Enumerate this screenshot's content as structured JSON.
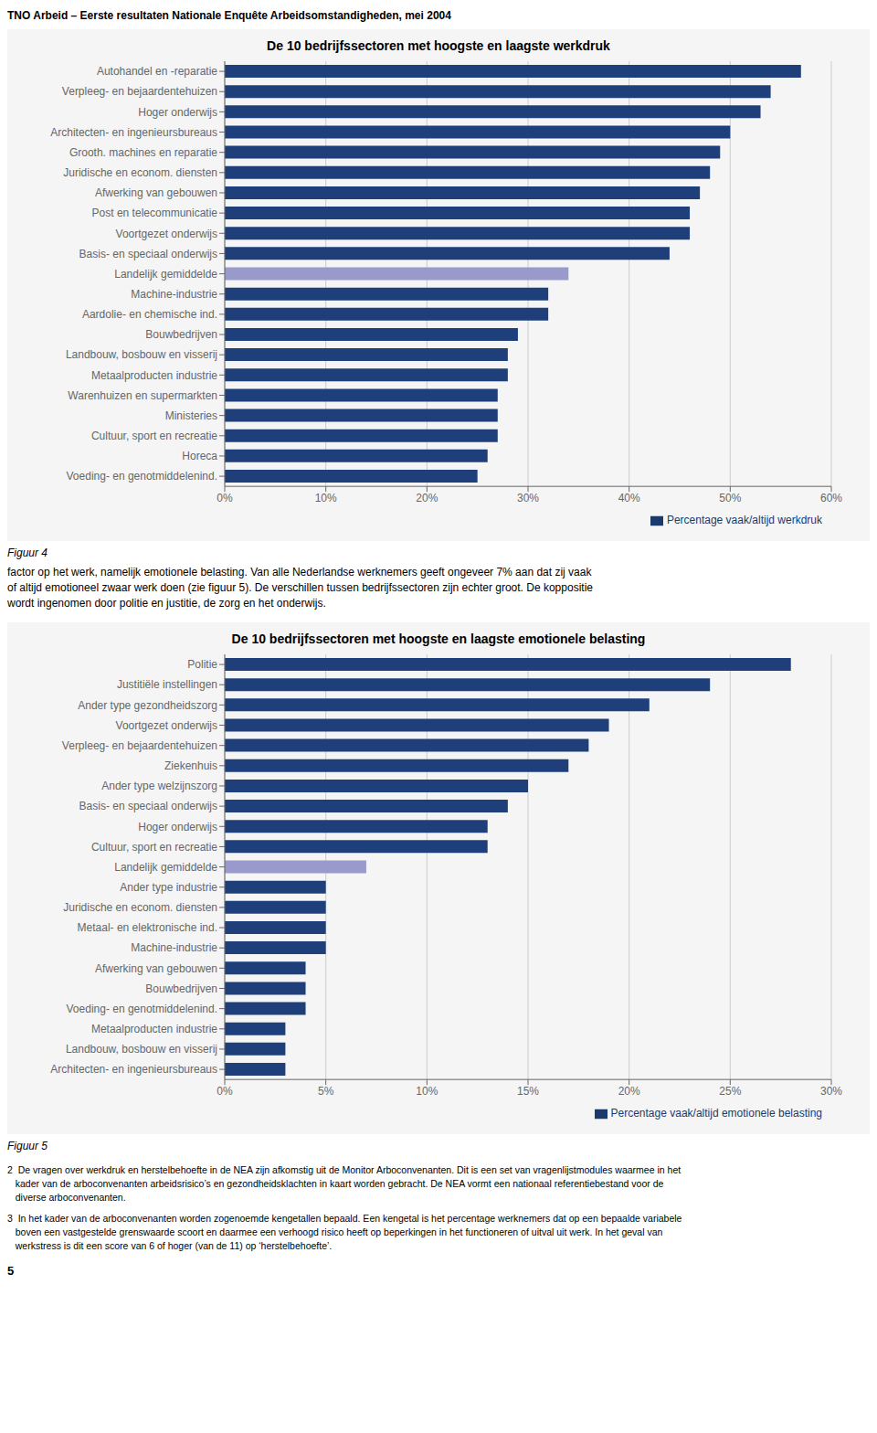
{
  "title": "TNO Arbeid – Eerste resultaten Nationale Enquête Arbeidsomstandigheden, mei 2004",
  "chart_data": [
    {
      "type": "bar",
      "title": "De 10 bedrijfssectoren met hoogste en laagste werkdruk",
      "orientation": "horizontal",
      "categories": [
        "Autohandel en -reparatie",
        "Verpleeg- en bejaardentehuizen",
        "Hoger onderwijs",
        "Architecten- en ingenieursbureaus",
        "Grooth. machines en reparatie",
        "Juridische en econom. diensten",
        "Afwerking van gebouwen",
        "Post en telecommunicatie",
        "Voortgezet onderwijs",
        "Basis- en speciaal onderwijs",
        "Landelijk gemiddelde",
        "Machine-industrie",
        "Aardolie- en chemische ind.",
        "Bouwbedrijven",
        "Landbouw, bosbouw en visserij",
        "Metaalproducten industrie",
        "Warenhuizen en supermarkten",
        "Ministeries",
        "Cultuur, sport en recreatie",
        "Horeca",
        "Voeding- en genotmiddelenind."
      ],
      "series": [
        {
          "name": "Percentage vaak/altijd werkdruk",
          "color": "#1a3a6e",
          "colors": [
            "#1f3f7a",
            "#1f3f7a",
            "#1f3f7a",
            "#1f3f7a",
            "#1f3f7a",
            "#1f3f7a",
            "#1f3f7a",
            "#1f3f7a",
            "#1f3f7a",
            "#1f3f7a",
            "#9999cc",
            "#1f3f7a",
            "#1f3f7a",
            "#1f3f7a",
            "#1f3f7a",
            "#1f3f7a",
            "#1f3f7a",
            "#1f3f7a",
            "#1f3f7a",
            "#1f3f7a",
            "#1f3f7a"
          ],
          "values": [
            57,
            54,
            53,
            50,
            49,
            48,
            47,
            46,
            46,
            44,
            34,
            32,
            32,
            29,
            28,
            28,
            27,
            27,
            27,
            26,
            25
          ]
        }
      ],
      "xlim": [
        0,
        60
      ],
      "xticks": [
        {
          "value": 0,
          "label": "0%"
        },
        {
          "value": 10,
          "label": "10%"
        },
        {
          "value": 20,
          "label": "20%"
        },
        {
          "value": 30,
          "label": "30%"
        },
        {
          "value": 40,
          "label": "40%"
        },
        {
          "value": 50,
          "label": "50%"
        },
        {
          "value": 60,
          "label": "60%"
        }
      ],
      "grid": true,
      "legend": "lower right"
    },
    {
      "type": "bar",
      "title": "De 10 bedrijfssectoren met hoogste en laagste emotionele belasting",
      "orientation": "horizontal",
      "categories": [
        "Politie",
        "Justitiële instellingen",
        "Ander type gezondheidszorg",
        "Voortgezet onderwijs",
        "Verpleeg- en bejaardentehuizen",
        "Ziekenhuis",
        "Ander type welzijnszorg",
        "Basis- en speciaal onderwijs",
        "Hoger onderwijs",
        "Cultuur, sport en recreatie",
        "Landelijk gemiddelde",
        "Ander type industrie",
        "Juridische en econom. diensten",
        "Metaal- en elektronische ind.",
        "Machine-industrie",
        "Afwerking van gebouwen",
        "Bouwbedrijven",
        "Voeding- en genotmiddelenind.",
        "Metaalproducten industrie",
        "Landbouw, bosbouw en visserij",
        "Architecten- en ingenieursbureaus"
      ],
      "series": [
        {
          "name": "Percentage vaak/altijd emotionele belasting",
          "color": "#1a3a6e",
          "colors": [
            "#1f3f7a",
            "#1f3f7a",
            "#1f3f7a",
            "#1f3f7a",
            "#1f3f7a",
            "#1f3f7a",
            "#1f3f7a",
            "#1f3f7a",
            "#1f3f7a",
            "#1f3f7a",
            "#9999cc",
            "#1f3f7a",
            "#1f3f7a",
            "#1f3f7a",
            "#1f3f7a",
            "#1f3f7a",
            "#1f3f7a",
            "#1f3f7a",
            "#1f3f7a",
            "#1f3f7a",
            "#1f3f7a"
          ],
          "values": [
            28,
            24,
            21,
            19,
            18,
            17,
            15,
            14,
            13,
            13,
            7,
            5,
            5,
            5,
            5,
            4,
            4,
            4,
            3,
            3,
            3
          ]
        }
      ],
      "xlim": [
        0,
        30
      ],
      "xticks": [
        {
          "value": 0,
          "label": "0%"
        },
        {
          "value": 5,
          "label": "5%"
        },
        {
          "value": 10,
          "label": "10%"
        },
        {
          "value": 15,
          "label": "15%"
        },
        {
          "value": 20,
          "label": "20%"
        },
        {
          "value": 25,
          "label": "25%"
        },
        {
          "value": 30,
          "label": "30%"
        }
      ],
      "grid": true,
      "legend": "lower right"
    }
  ],
  "annotations": [
    [
      "Figuur 4"
    ],
    [
      "factor op het werk, namelijk emotionele belasting. Van alle Nederlandse werknemers geeft ongeveer 7% aan dat zij vaak",
      "of altijd emotioneel zwaar werk doen (zie figuur 5). De verschillen tussen bedrijfssectoren zijn echter groot. De koppositie",
      "wordt ingenomen door politie en justitie, de zorg en het onderwijs."
    ],
    [
      "Figuur 5"
    ],
    [
      "2  De vragen over werkdruk en herstelbehoefte in de NEA zijn afkomstig uit de Monitor Arboconvenanten. Dit is een set van vragenlijstmodules waarmee in het",
      "   kader van de arboconvenanten arbeidsrisico’s en gezondheidsklachten in kaart worden gebracht. De NEA vormt een nationaal referentiebestand voor de",
      "   diverse arboconvenanten."
    ],
    [
      "3  In het kader van de arboconvenanten worden zogenoemde kengetallen bepaald. Een kengetal is het percentage werknemers dat op een bepaalde variabele",
      "   boven een vastgestelde grenswaarde scoort en daarmee een verhoogd risico heeft op beperkingen in het functioneren of uitval uit werk. In het geval van",
      "   werkstress is dit een score van 6 of hoger (van de 11) op ‘herstelbehoefte’."
    ],
    [
      "5"
    ]
  ]
}
